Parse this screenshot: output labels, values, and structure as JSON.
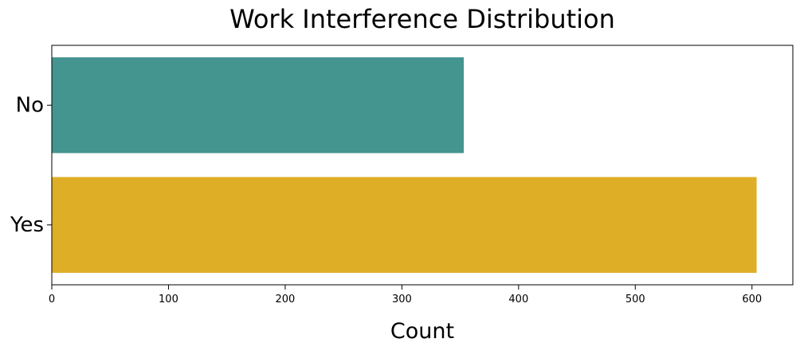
{
  "chart_data": {
    "type": "bar",
    "orientation": "horizontal",
    "title": "Work Interference Distribution",
    "xlabel": "Count",
    "ylabel": "",
    "categories": [
      "No",
      "Yes"
    ],
    "values": [
      353,
      604
    ],
    "colors": [
      "#44948F",
      "#DFAE27"
    ],
    "xlim": [
      0,
      635
    ],
    "xticks": [
      0,
      100,
      200,
      300,
      400,
      500,
      600
    ],
    "grid": false,
    "legend": "none"
  }
}
